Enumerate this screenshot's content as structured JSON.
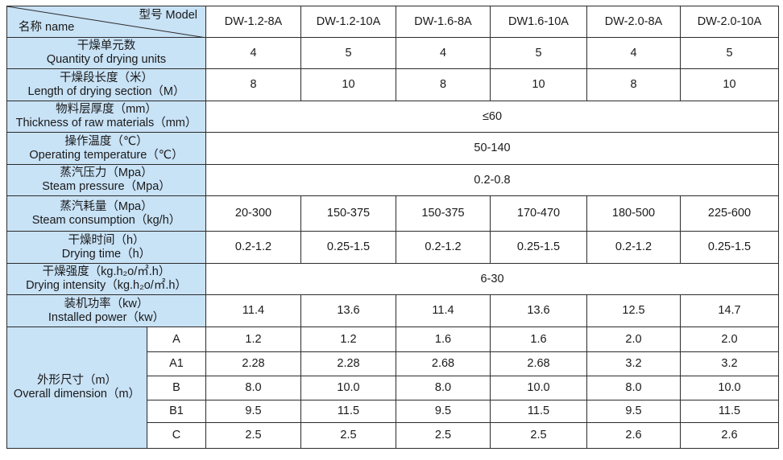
{
  "header": {
    "model_label": "型号 Model",
    "name_label": "名称 name",
    "models": [
      "DW-1.2-8A",
      "DW-1.2-10A",
      "DW-1.6-8A",
      "DW1.6-10A",
      "DW-2.0-8A",
      "DW-2.0-10A"
    ]
  },
  "rows": [
    {
      "zh": "干燥单元数",
      "en": "Quantity of drying units",
      "values": [
        "4",
        "5",
        "4",
        "5",
        "4",
        "5"
      ]
    },
    {
      "zh": "干燥段长度（米）",
      "en": "Length of drying section（M）",
      "values": [
        "8",
        "10",
        "8",
        "10",
        "8",
        "10"
      ]
    },
    {
      "zh": "物料层厚度（mm）",
      "en": "Thickness of raw materials（mm）",
      "merged": "≤60"
    },
    {
      "zh": "操作温度（℃）",
      "en": "Operating temperature（℃）",
      "merged": "50-140"
    },
    {
      "zh": "蒸汽压力（Mpa）",
      "en": "Steam pressure（Mpa）",
      "merged": "0.2-0.8"
    },
    {
      "zh": "蒸汽耗量（Mpa）",
      "en": "Steam consumption（kg/h）",
      "values": [
        "20-300",
        "150-375",
        "150-375",
        "170-470",
        "180-500",
        "225-600"
      ]
    },
    {
      "zh": "干燥时间（h）",
      "en": "Drying time（h）",
      "values": [
        "0.2-1.2",
        "0.25-1.5",
        "0.2-1.2",
        "0.25-1.5",
        "0.2-1.2",
        "0.25-1.5"
      ]
    },
    {
      "zh": "干燥强度（kg.h₂o/㎡.h）",
      "en": "Drying intensity（kg.h₂o/㎡.h）",
      "merged": "6-30"
    },
    {
      "zh": "装机功率（kw）",
      "en": "Installed power（kw）",
      "values": [
        "11.4",
        "13.6",
        "11.4",
        "13.6",
        "12.5",
        "14.7"
      ]
    }
  ],
  "dimension": {
    "zh": "外形尺寸（m）",
    "en": "Overall dimension（m）",
    "rows": [
      {
        "label": "A",
        "values": [
          "1.2",
          "1.2",
          "1.6",
          "1.6",
          "2.0",
          "2.0"
        ]
      },
      {
        "label": "A1",
        "values": [
          "2.28",
          "2.28",
          "2.68",
          "2.68",
          "3.2",
          "3.2"
        ]
      },
      {
        "label": "B",
        "values": [
          "8.0",
          "10.0",
          "8.0",
          "10.0",
          "8.0",
          "10.0"
        ]
      },
      {
        "label": "B1",
        "values": [
          "9.5",
          "11.5",
          "9.5",
          "11.5",
          "9.5",
          "11.5"
        ]
      },
      {
        "label": "C",
        "values": [
          "2.5",
          "2.5",
          "2.5",
          "2.5",
          "2.6",
          "2.6"
        ]
      }
    ]
  },
  "colors": {
    "header_bg": "#c8e2f6",
    "border": "#2b2b2b"
  }
}
